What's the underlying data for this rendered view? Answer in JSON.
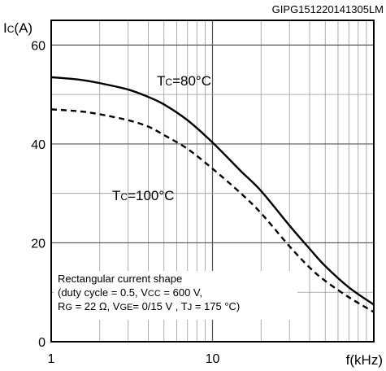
{
  "figure_id": "GIPG151220141305LM",
  "chart_data": {
    "type": "line",
    "title": "",
    "xlabel": "f(kHz)",
    "ylabel": {
      "main": "I",
      "sub": "C",
      "unit": "(A)"
    },
    "x_scale": "log",
    "xlim": [
      1,
      100
    ],
    "ylim": [
      0,
      65
    ],
    "x_ticks": [
      {
        "value": 1,
        "label": "1"
      },
      {
        "value": 10,
        "label": "10"
      }
    ],
    "y_ticks": [
      {
        "value": 0,
        "label": "0"
      },
      {
        "value": 20,
        "label": "20"
      },
      {
        "value": 40,
        "label": "40"
      },
      {
        "value": 60,
        "label": "60"
      }
    ],
    "grid": true,
    "series": [
      {
        "name": "TC=80°C",
        "label": {
          "main": "T",
          "sub": "C",
          "rest": "=80°C"
        },
        "style": "solid",
        "color": "#000000",
        "x": [
          1,
          1.5,
          2,
          3,
          4,
          5,
          7,
          10,
          15,
          20,
          30,
          40,
          50,
          70,
          100
        ],
        "y": [
          53.5,
          53.0,
          52.3,
          51.0,
          49.5,
          48.0,
          44.8,
          40.3,
          34.5,
          30.5,
          23.5,
          18.8,
          15.3,
          11.0,
          7.5
        ]
      },
      {
        "name": "TC=100°C",
        "label": {
          "main": "T",
          "sub": "C",
          "rest": "=100°C"
        },
        "style": "dashed",
        "color": "#000000",
        "x": [
          1,
          1.5,
          2,
          3,
          4,
          5,
          7,
          10,
          15,
          20,
          30,
          40,
          50,
          70,
          100
        ],
        "y": [
          47.0,
          46.6,
          46.0,
          44.8,
          43.5,
          41.8,
          39.0,
          35.0,
          30.0,
          26.0,
          19.3,
          15.0,
          12.3,
          9.0,
          6.0
        ]
      }
    ],
    "annotation": {
      "line1": "Rectangular current shape",
      "line2": [
        {
          "t": "(duty cycle = 0.5, V"
        },
        {
          "t": "CC",
          "sub": true
        },
        {
          "t": " =  600 V,"
        }
      ],
      "line3": [
        {
          "t": "R"
        },
        {
          "t": "G",
          "sub": true
        },
        {
          "t": " = 22 Ω, V"
        },
        {
          "t": "GE",
          "sub": true
        },
        {
          "t": "= 0/15 V , T"
        },
        {
          "t": "J",
          "sub": true
        },
        {
          "t": " = 175 °C)"
        }
      ]
    }
  }
}
